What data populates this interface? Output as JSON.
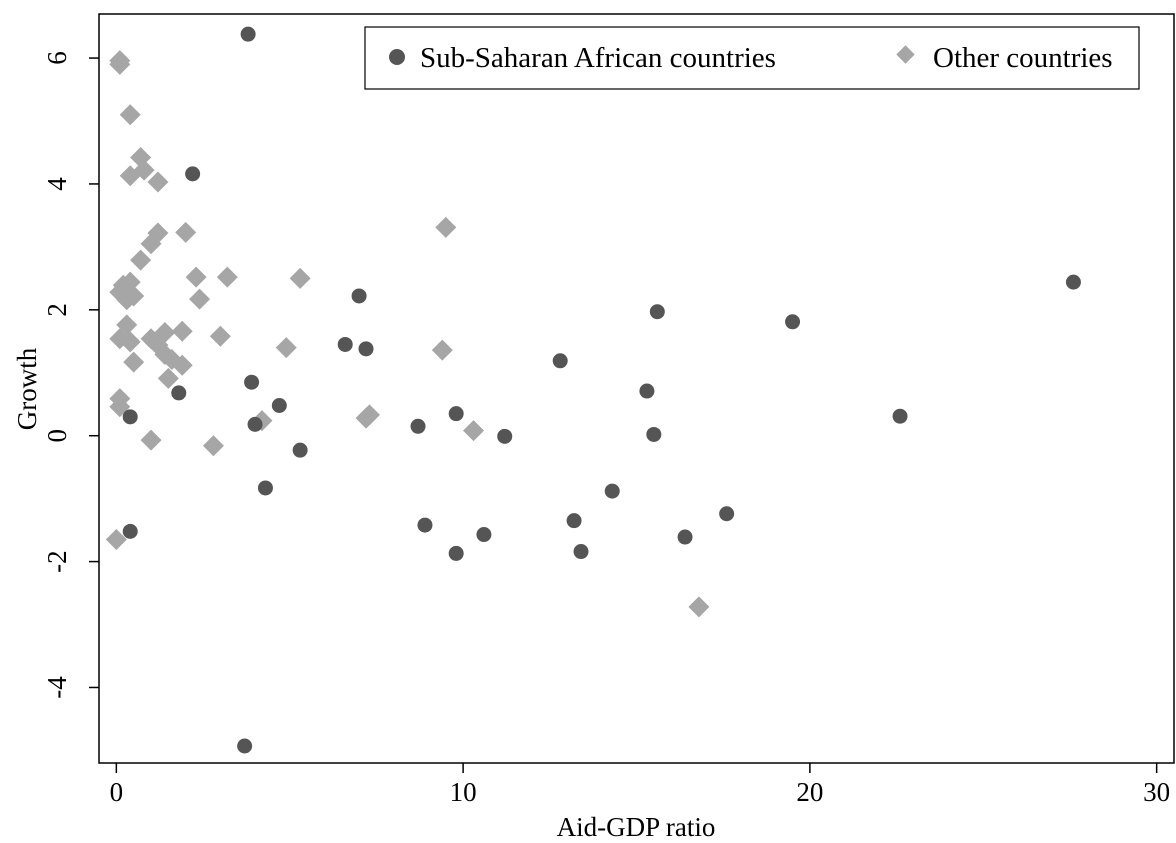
{
  "chart_data": {
    "type": "scatter",
    "title": "",
    "xlabel": "Aid-GDP ratio",
    "ylabel": "Growth",
    "xlim": [
      -0.5,
      30.5
    ],
    "ylim": [
      -5.2,
      6.7
    ],
    "xticks": [
      0,
      10,
      20,
      30
    ],
    "yticks": [
      -4,
      -2,
      0,
      2,
      4,
      6
    ],
    "xtick_labels": [
      "0",
      "10",
      "20",
      "30"
    ],
    "ytick_labels": [
      "-4",
      "-2",
      "0",
      "2",
      "4",
      "6"
    ],
    "grid": false,
    "legend_position": "top-right",
    "series": [
      {
        "name": "Sub-Saharan African countries",
        "marker": "circle",
        "color": "#555555",
        "points": [
          [
            3.8,
            6.38
          ],
          [
            2.2,
            4.16
          ],
          [
            27.6,
            2.44
          ],
          [
            7.0,
            2.22
          ],
          [
            15.6,
            1.97
          ],
          [
            19.5,
            1.81
          ],
          [
            6.6,
            1.45
          ],
          [
            7.2,
            1.38
          ],
          [
            12.8,
            1.19
          ],
          [
            3.9,
            0.85
          ],
          [
            15.3,
            0.71
          ],
          [
            1.8,
            0.68
          ],
          [
            4.7,
            0.48
          ],
          [
            0.4,
            0.3
          ],
          [
            9.8,
            0.35
          ],
          [
            22.6,
            0.31
          ],
          [
            4.0,
            0.18
          ],
          [
            8.7,
            0.15
          ],
          [
            15.5,
            0.02
          ],
          [
            11.2,
            -0.01
          ],
          [
            5.3,
            -0.23
          ],
          [
            4.3,
            -0.83
          ],
          [
            14.3,
            -0.88
          ],
          [
            17.6,
            -1.24
          ],
          [
            13.2,
            -1.35
          ],
          [
            8.9,
            -1.42
          ],
          [
            0.4,
            -1.52
          ],
          [
            10.6,
            -1.57
          ],
          [
            16.4,
            -1.61
          ],
          [
            9.8,
            -1.87
          ],
          [
            13.4,
            -1.84
          ],
          [
            3.7,
            -4.93
          ]
        ]
      },
      {
        "name": "Other countries",
        "marker": "diamond",
        "color": "#a6a6a6",
        "points": [
          [
            0.1,
            5.96
          ],
          [
            0.1,
            5.9
          ],
          [
            0.4,
            5.1
          ],
          [
            0.7,
            4.42
          ],
          [
            0.8,
            4.22
          ],
          [
            0.4,
            4.13
          ],
          [
            1.2,
            4.03
          ],
          [
            9.5,
            3.31
          ],
          [
            2.0,
            3.23
          ],
          [
            1.2,
            3.22
          ],
          [
            1.0,
            3.05
          ],
          [
            0.7,
            2.79
          ],
          [
            3.2,
            2.52
          ],
          [
            2.3,
            2.52
          ],
          [
            5.3,
            2.5
          ],
          [
            0.4,
            2.44
          ],
          [
            0.2,
            2.39
          ],
          [
            0.1,
            2.28
          ],
          [
            0.5,
            2.22
          ],
          [
            0.3,
            2.16
          ],
          [
            2.4,
            2.17
          ],
          [
            0.3,
            1.76
          ],
          [
            1.9,
            1.66
          ],
          [
            1.4,
            1.64
          ],
          [
            3.0,
            1.58
          ],
          [
            1.0,
            1.54
          ],
          [
            0.1,
            1.54
          ],
          [
            0.4,
            1.49
          ],
          [
            1.2,
            1.44
          ],
          [
            4.9,
            1.4
          ],
          [
            9.4,
            1.36
          ],
          [
            1.4,
            1.29
          ],
          [
            1.6,
            1.21
          ],
          [
            0.5,
            1.17
          ],
          [
            1.9,
            1.12
          ],
          [
            1.5,
            0.91
          ],
          [
            0.1,
            0.59
          ],
          [
            0.1,
            0.46
          ],
          [
            7.3,
            0.33
          ],
          [
            7.2,
            0.28
          ],
          [
            4.2,
            0.24
          ],
          [
            10.3,
            0.08
          ],
          [
            1.0,
            -0.07
          ],
          [
            2.8,
            -0.16
          ],
          [
            0.0,
            -1.65
          ],
          [
            16.8,
            -2.72
          ]
        ]
      }
    ]
  }
}
